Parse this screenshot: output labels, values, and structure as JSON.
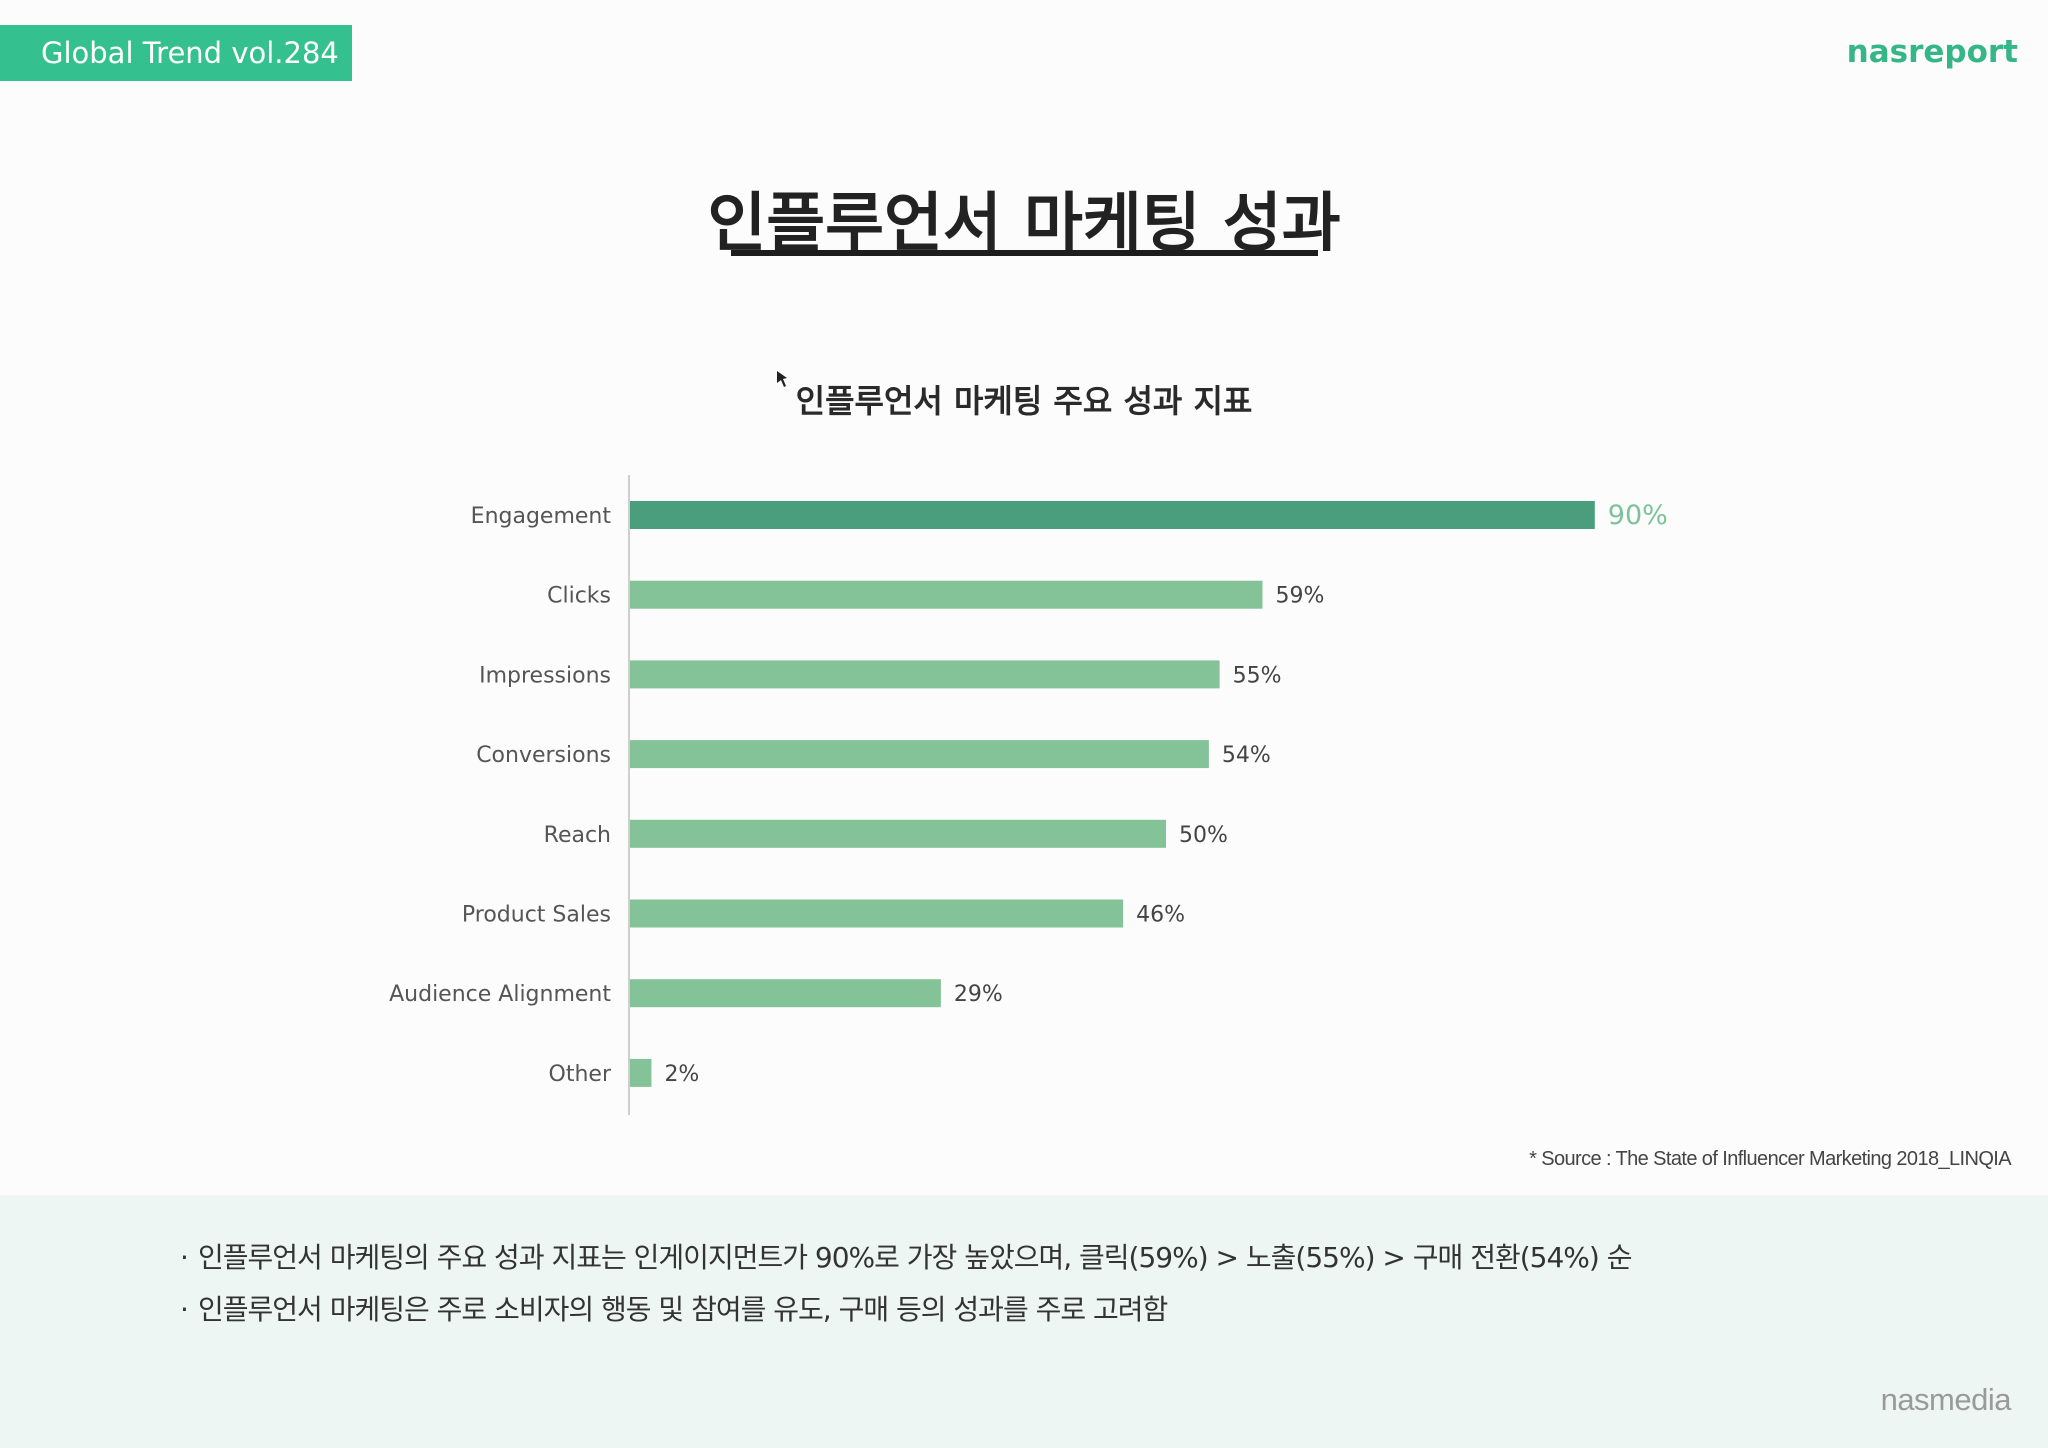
{
  "header": {
    "badge": "Global Trend vol.284",
    "brand": "nasreport"
  },
  "page_title": "인플루언서 마케팅 성과",
  "colors": {
    "accent": "#35c08f",
    "bar_highlight": "#4a9e7e",
    "bar": "#84c298",
    "highlight_label": "#7cc39a"
  },
  "chart_data": {
    "type": "bar",
    "orientation": "horizontal",
    "title": "인플루언서 마케팅 주요 성과 지표",
    "categories": [
      "Engagement",
      "Clicks",
      "Impressions",
      "Conversions",
      "Reach",
      "Product Sales",
      "Audience Alignment",
      "Other"
    ],
    "values": [
      90,
      59,
      55,
      54,
      50,
      46,
      29,
      2
    ],
    "value_labels": [
      "90%",
      "59%",
      "55%",
      "54%",
      "50%",
      "46%",
      "29%",
      "2%"
    ],
    "highlight_category": "Engagement",
    "xlim": [
      0,
      100
    ],
    "grid": false
  },
  "source": "* Source : The State of Influencer Marketing 2018_LINQIA",
  "summary": {
    "bullets": [
      "인플루언서 마케팅의 주요 성과 지표는 인게이지먼트가 90%로 가장 높았으며, 클릭(59%) > 노출(55%) > 구매 전환(54%) 순",
      "인플루언서 마케팅은 주로 소비자의 행동 및 참여를 유도, 구매 등의 성과를 주로 고려함"
    ]
  },
  "footer": {
    "brand": "nasmedia"
  }
}
